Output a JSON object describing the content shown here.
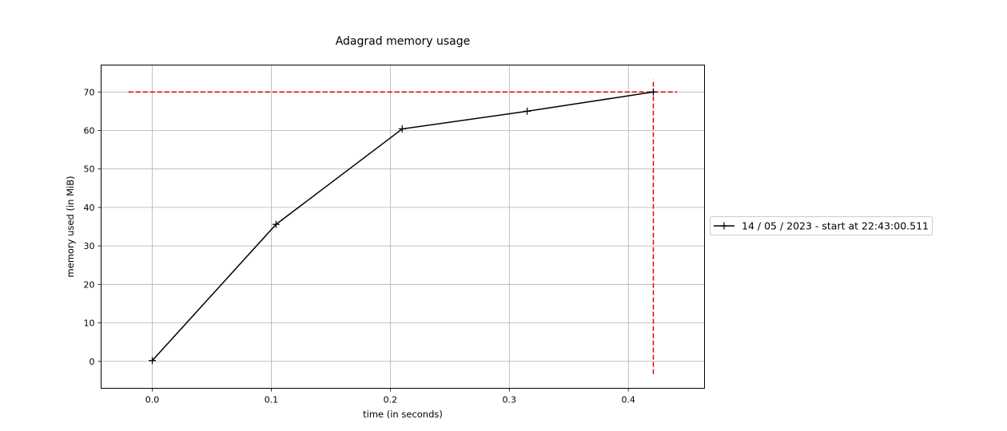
{
  "chart_data": {
    "type": "line",
    "title": "Adagrad memory usage",
    "xlabel": "time (in seconds)",
    "ylabel": "memory used (in MiB)",
    "xlim": [
      -0.043,
      0.464
    ],
    "ylim": [
      -7,
      77
    ],
    "x_ticks": [
      0.0,
      0.1,
      0.2,
      0.3,
      0.4
    ],
    "x_tick_labels": [
      "0.0",
      "0.1",
      "0.2",
      "0.3",
      "0.4"
    ],
    "y_ticks": [
      0,
      10,
      20,
      30,
      40,
      50,
      60,
      70
    ],
    "y_tick_labels": [
      "0",
      "10",
      "20",
      "30",
      "40",
      "50",
      "60",
      "70"
    ],
    "grid": true,
    "legend_position": "right-outside",
    "series": [
      {
        "name": "14 / 05 / 2023 - start at 22:43:00.511",
        "color": "#000000",
        "marker": "+",
        "x": [
          0.0,
          0.104,
          0.21,
          0.315,
          0.421
        ],
        "y": [
          0.2,
          35.6,
          60.4,
          65.0,
          70.0
        ]
      }
    ],
    "reference_lines": {
      "color": "#e00000",
      "style": "dashed",
      "horizontal": {
        "y": 70.0,
        "x_from": -0.02,
        "x_to": 0.441
      },
      "vertical": {
        "x": 0.421,
        "y_from": -3.3,
        "y_to": 73.3
      }
    }
  }
}
